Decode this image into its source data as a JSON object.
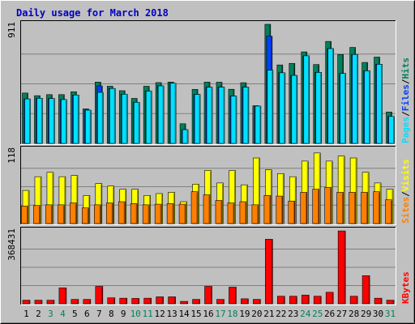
{
  "chart_data": [
    {
      "type": "bar",
      "title": "Daily usage for March 2018",
      "categories": [
        "1",
        "2",
        "3",
        "4",
        "5",
        "6",
        "7",
        "8",
        "9",
        "10",
        "11",
        "12",
        "13",
        "14",
        "15",
        "16",
        "17",
        "18",
        "19",
        "20",
        "21",
        "22",
        "23",
        "24",
        "25",
        "26",
        "27",
        "28",
        "29",
        "30",
        "31"
      ],
      "weekend_days": [
        "3",
        "4",
        "10",
        "11",
        "17",
        "18",
        "24",
        "25",
        "31"
      ],
      "ymax_label": "911",
      "ylim": [
        0,
        911
      ],
      "grid": true,
      "legend": [
        {
          "text": "Hits",
          "color": "#00805c"
        },
        {
          "text": "Files",
          "color": "#0040ff"
        },
        {
          "text": "Pages",
          "color": "#00e0ff"
        }
      ],
      "series": [
        {
          "name": "Hits",
          "color": "#00805c",
          "values": [
            385,
            365,
            373,
            373,
            395,
            264,
            469,
            437,
            403,
            344,
            437,
            465,
            469,
            150,
            413,
            469,
            468,
            414,
            464,
            288,
            911,
            600,
            612,
            700,
            603,
            780,
            680,
            734,
            619,
            660,
            240
          ]
        },
        {
          "name": "Files",
          "color": "#0040ff",
          "values": [
            340,
            345,
            343,
            335,
            370,
            254,
            440,
            420,
            376,
            314,
            400,
            440,
            460,
            105,
            375,
            430,
            430,
            362,
            430,
            285,
            820,
            540,
            520,
            670,
            543,
            725,
            535,
            680,
            555,
            605,
            206
          ]
        },
        {
          "name": "Pages",
          "color": "#00e0ff",
          "values": [
            340,
            345,
            343,
            335,
            370,
            254,
            390,
            420,
            376,
            314,
            400,
            440,
            460,
            105,
            375,
            430,
            430,
            362,
            430,
            285,
            560,
            540,
            520,
            670,
            543,
            725,
            535,
            680,
            555,
            605,
            206
          ]
        }
      ]
    },
    {
      "type": "bar",
      "ymax_label": "118",
      "ylim": [
        0,
        118
      ],
      "grid": true,
      "legend": [
        {
          "text": "Visits",
          "color": "#ffff00"
        },
        {
          "text": "Sites",
          "color": "#ff8000"
        }
      ],
      "series": [
        {
          "name": "Visits",
          "color": "#ffff00",
          "values": [
            53,
            75,
            82,
            75,
            77,
            45,
            64,
            60,
            55,
            55,
            45,
            48,
            50,
            35,
            63,
            85,
            65,
            85,
            62,
            105,
            86,
            80,
            75,
            100,
            113,
            100,
            108,
            105,
            82,
            65,
            55
          ]
        },
        {
          "name": "Sites",
          "color": "#ff8000",
          "values": [
            28,
            29,
            30,
            30,
            33,
            25,
            30,
            33,
            35,
            32,
            30,
            31,
            32,
            31,
            51,
            46,
            37,
            33,
            35,
            30,
            45,
            44,
            36,
            50,
            55,
            58,
            50,
            50,
            50,
            51,
            38
          ]
        }
      ]
    },
    {
      "type": "bar",
      "ymax_label": "368431",
      "ylim": [
        0,
        368431
      ],
      "grid": true,
      "legend": [
        {
          "text": "KBytes",
          "color": "#ff0000"
        }
      ],
      "series": [
        {
          "name": "KBytes",
          "color": "#ff0000",
          "values": [
            18000,
            18000,
            18000,
            80000,
            22000,
            22000,
            88000,
            30000,
            28000,
            27000,
            28000,
            35000,
            35000,
            12000,
            22000,
            88000,
            22000,
            84000,
            25000,
            22000,
            326000,
            38000,
            38000,
            44000,
            38000,
            58000,
            368000,
            38000,
            142000,
            28000,
            18000
          ]
        }
      ]
    }
  ]
}
